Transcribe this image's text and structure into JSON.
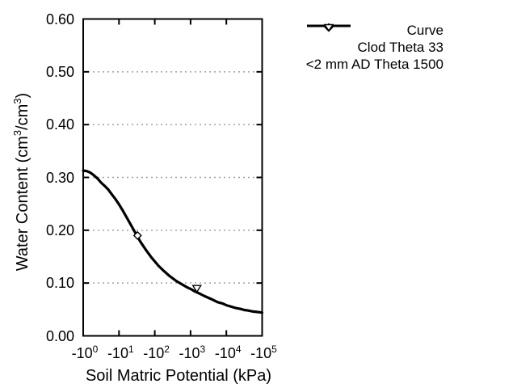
{
  "figure": {
    "background_color": "#ffffff",
    "foreground_color": "#000000",
    "grid_color": "#a0a0a0"
  },
  "chart_data": {
    "type": "line",
    "title": "",
    "xlabel": "Soil Matric Potential (kPa)",
    "ylabel": "Water Content (cm³/cm³)",
    "ylabel_parts": [
      {
        "t": "Water Content (cm"
      },
      {
        "t": "3",
        "sup": true
      },
      {
        "t": "/cm"
      },
      {
        "t": "3",
        "sup": true
      },
      {
        "t": ")"
      }
    ],
    "x_scale": "log10-negative",
    "xlim_kpa": [
      -1,
      -100000
    ],
    "xlim_decades": [
      0,
      5
    ],
    "ylim": [
      0.0,
      0.6
    ],
    "grid": "horizontal-dotted",
    "x_ticks": [
      {
        "base": "-10",
        "exp": "0",
        "decade": 0
      },
      {
        "base": "-10",
        "exp": "1",
        "decade": 1
      },
      {
        "base": "-10",
        "exp": "2",
        "decade": 2
      },
      {
        "base": "-10",
        "exp": "3",
        "decade": 3
      },
      {
        "base": "-10",
        "exp": "4",
        "decade": 4
      },
      {
        "base": "-10",
        "exp": "5",
        "decade": 5
      }
    ],
    "y_ticks": [
      {
        "label": "0.00",
        "value": 0.0
      },
      {
        "label": "0.10",
        "value": 0.1
      },
      {
        "label": "0.20",
        "value": 0.2
      },
      {
        "label": "0.30",
        "value": 0.3
      },
      {
        "label": "0.40",
        "value": 0.4
      },
      {
        "label": "0.50",
        "value": 0.5
      },
      {
        "label": "0.60",
        "value": 0.6
      }
    ],
    "legend_position": "outside-top-right",
    "series": [
      {
        "name": "Curve",
        "style": "solid-line",
        "points_decade_theta": [
          [
            0.0,
            0.313
          ],
          [
            0.1,
            0.312
          ],
          [
            0.2,
            0.309
          ],
          [
            0.3,
            0.304
          ],
          [
            0.4,
            0.298
          ],
          [
            0.5,
            0.29
          ],
          [
            0.6,
            0.284
          ],
          [
            0.7,
            0.277
          ],
          [
            0.8,
            0.268
          ],
          [
            0.9,
            0.259
          ],
          [
            1.0,
            0.249
          ],
          [
            1.1,
            0.238
          ],
          [
            1.25,
            0.22
          ],
          [
            1.4,
            0.202
          ],
          [
            1.5,
            0.19
          ],
          [
            1.6,
            0.178
          ],
          [
            1.75,
            0.163
          ],
          [
            1.9,
            0.149
          ],
          [
            2.0,
            0.141
          ],
          [
            2.1,
            0.133
          ],
          [
            2.25,
            0.123
          ],
          [
            2.4,
            0.114
          ],
          [
            2.5,
            0.109
          ],
          [
            2.6,
            0.104
          ],
          [
            2.75,
            0.098
          ],
          [
            2.9,
            0.092
          ],
          [
            3.0,
            0.089
          ],
          [
            3.1,
            0.085
          ],
          [
            3.25,
            0.08
          ],
          [
            3.4,
            0.075
          ],
          [
            3.5,
            0.072
          ],
          [
            3.6,
            0.069
          ],
          [
            3.75,
            0.064
          ],
          [
            3.9,
            0.061
          ],
          [
            4.0,
            0.058
          ],
          [
            4.1,
            0.056
          ],
          [
            4.25,
            0.053
          ],
          [
            4.4,
            0.051
          ],
          [
            4.5,
            0.049
          ],
          [
            4.6,
            0.048
          ],
          [
            4.75,
            0.046
          ],
          [
            4.9,
            0.045
          ],
          [
            5.0,
            0.044
          ]
        ]
      },
      {
        "name": "Clod Theta 33",
        "style": "open-diamond",
        "points_kpa_theta": [
          [
            -33,
            0.19
          ]
        ]
      },
      {
        "name": "<2 mm AD Theta 1500",
        "style": "open-triangle-down",
        "points_kpa_theta": [
          [
            -1500,
            0.09
          ]
        ]
      }
    ]
  }
}
